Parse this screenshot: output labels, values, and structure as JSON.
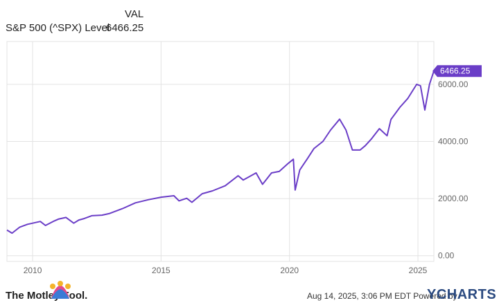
{
  "legend": {
    "header": "VAL",
    "series_name": "S&P 500 (^SPX) Level",
    "series_value": "6466.25"
  },
  "footer": {
    "timestamp": "Aug 14, 2025, 3:06 PM EDT  Powered by",
    "brand_left": "The Motley Fool.",
    "brand_right": "YCHARTS"
  },
  "colors": {
    "line": "#6a3dc7",
    "grid": "#e3e3e3",
    "axis_text": "#666666",
    "label_bg": "#6a3dc7"
  },
  "chart_data": {
    "type": "line",
    "series": [
      {
        "name": "S&P 500 (^SPX) Level",
        "x": [
          2009.0,
          2009.2,
          2009.5,
          2009.8,
          2010.0,
          2010.3,
          2010.5,
          2010.8,
          2011.0,
          2011.3,
          2011.6,
          2011.8,
          2012.0,
          2012.3,
          2012.7,
          2013.0,
          2013.5,
          2014.0,
          2014.5,
          2015.0,
          2015.5,
          2015.7,
          2016.0,
          2016.2,
          2016.6,
          2017.0,
          2017.5,
          2018.0,
          2018.2,
          2018.7,
          2018.95,
          2019.3,
          2019.6,
          2019.95,
          2020.15,
          2020.22,
          2020.4,
          2020.7,
          2020.95,
          2021.3,
          2021.6,
          2021.95,
          2022.2,
          2022.45,
          2022.75,
          2022.95,
          2023.2,
          2023.5,
          2023.8,
          2023.95,
          2024.3,
          2024.6,
          2024.95,
          2025.1,
          2025.27,
          2025.45,
          2025.62
        ],
        "values": [
          900,
          790,
          1000,
          1100,
          1140,
          1200,
          1060,
          1200,
          1280,
          1340,
          1140,
          1250,
          1300,
          1400,
          1420,
          1480,
          1650,
          1850,
          1960,
          2050,
          2100,
          1920,
          2010,
          1870,
          2170,
          2270,
          2450,
          2800,
          2650,
          2900,
          2500,
          2900,
          2950,
          3230,
          3380,
          2300,
          3000,
          3400,
          3750,
          4000,
          4400,
          4780,
          4400,
          3700,
          3700,
          3850,
          4100,
          4450,
          4200,
          4770,
          5200,
          5500,
          6000,
          5950,
          5100,
          6000,
          6466.25
        ]
      }
    ],
    "x_ticks": [
      "2010",
      "2015",
      "2020",
      "2025"
    ],
    "x_tick_values": [
      2010,
      2015,
      2020,
      2025
    ],
    "y_ticks": [
      "0.00",
      "2000.00",
      "4000.00",
      "6000.00"
    ],
    "y_tick_values": [
      0,
      2000,
      4000,
      6000
    ],
    "xlim": [
      2009.0,
      2025.62
    ],
    "ylim": [
      -200,
      7500
    ],
    "last_value_label": "6466.25",
    "grid": true
  }
}
